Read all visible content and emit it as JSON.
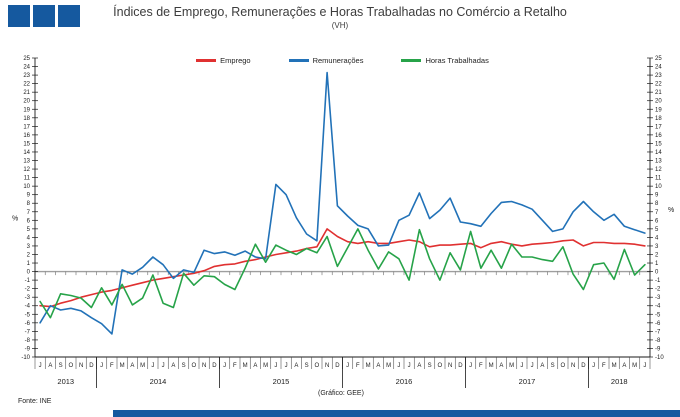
{
  "header": {
    "title": "Índices de Emprego, Remunerações e Horas Trabalhadas no Comércio a Retalho",
    "subtitle": "(VH)"
  },
  "footer": {
    "source": "Fonte: INE",
    "credit": "(Gráfico: GEE)"
  },
  "colors": {
    "brand_blue": "#15599f",
    "axis_black": "#1a1a1a",
    "zero_line_gray": "#9e9e9e",
    "emprego_red": "#e03131",
    "remuneracoes_blue": "#2272b8",
    "horas_green": "#27a349"
  },
  "chart_data": {
    "type": "line",
    "ylabel_left": "%",
    "ylabel_right": "%",
    "ylim": [
      -10,
      25
    ],
    "ytick_step": 1,
    "grid": false,
    "legend_position": "top-center",
    "x_month_labels": [
      "J",
      "A",
      "S",
      "O",
      "N",
      "D",
      "J",
      "F",
      "M",
      "A",
      "M",
      "J",
      "J",
      "A",
      "S",
      "O",
      "N",
      "D",
      "J",
      "F",
      "M",
      "A",
      "M",
      "J",
      "J",
      "A",
      "S",
      "O",
      "N",
      "D",
      "J",
      "F",
      "M",
      "A",
      "M",
      "J",
      "J",
      "A",
      "S",
      "O",
      "N",
      "D",
      "J",
      "F",
      "M",
      "A",
      "M",
      "J",
      "J",
      "A",
      "S",
      "O",
      "N",
      "D",
      "J",
      "F",
      "M",
      "A",
      "M",
      "J"
    ],
    "year_groups": [
      {
        "label": "2013",
        "months": 6
      },
      {
        "label": "2014",
        "months": 12
      },
      {
        "label": "2015",
        "months": 12
      },
      {
        "label": "2016",
        "months": 12
      },
      {
        "label": "2017",
        "months": 12
      },
      {
        "label": "2018",
        "months": 6
      }
    ],
    "series": [
      {
        "name": "Emprego",
        "color": "#e03131",
        "values": [
          -4.0,
          -4.1,
          -3.7,
          -3.4,
          -3.0,
          -2.7,
          -2.4,
          -2.2,
          -1.9,
          -1.6,
          -1.3,
          -1.0,
          -0.8,
          -0.6,
          -0.4,
          -0.2,
          0.1,
          0.6,
          0.8,
          0.9,
          1.2,
          1.4,
          1.7,
          2.0,
          2.2,
          2.4,
          2.7,
          2.9,
          5.0,
          4.1,
          3.5,
          3.3,
          3.5,
          3.3,
          3.3,
          3.5,
          3.7,
          3.5,
          2.9,
          3.1,
          3.1,
          3.2,
          3.3,
          2.8,
          3.3,
          3.5,
          3.2,
          3.0,
          3.2,
          3.3,
          3.4,
          3.6,
          3.7,
          3.0,
          3.4,
          3.4,
          3.3,
          3.3,
          3.2,
          3.0
        ]
      },
      {
        "name": "Remunerações",
        "color": "#2272b8",
        "values": [
          -6.0,
          -4.0,
          -4.5,
          -4.3,
          -4.6,
          -5.4,
          -6.1,
          -7.3,
          0.2,
          -0.3,
          0.5,
          1.7,
          0.8,
          -0.8,
          0.2,
          -0.1,
          2.5,
          2.1,
          2.3,
          1.9,
          2.4,
          1.7,
          1.5,
          10.2,
          9.0,
          6.3,
          4.4,
          3.6,
          23.3,
          7.7,
          6.5,
          5.4,
          5.0,
          3.0,
          3.1,
          6.0,
          6.6,
          9.2,
          6.2,
          7.2,
          8.6,
          5.8,
          5.6,
          5.3,
          6.8,
          8.1,
          8.2,
          7.8,
          7.3,
          6.0,
          4.7,
          5.0,
          7.0,
          8.2,
          7.0,
          6.0,
          6.7,
          5.3,
          4.9,
          4.5
        ]
      },
      {
        "name": "Horas Trabalhadas",
        "color": "#27a349",
        "values": [
          -3.5,
          -5.4,
          -2.6,
          -2.8,
          -3.1,
          -4.2,
          -1.9,
          -3.9,
          -1.5,
          -3.9,
          -3.1,
          -0.4,
          -3.7,
          -4.2,
          -0.2,
          -1.6,
          -0.5,
          -0.6,
          -1.5,
          -2.1,
          0.4,
          3.2,
          1.1,
          3.1,
          2.5,
          2.0,
          2.7,
          2.2,
          4.1,
          0.6,
          2.8,
          5.0,
          2.5,
          0.3,
          2.3,
          1.5,
          -1.0,
          4.9,
          1.5,
          -1.0,
          2.2,
          0.2,
          4.7,
          0.4,
          2.5,
          0.4,
          3.2,
          1.7,
          1.7,
          1.4,
          1.2,
          2.9,
          -0.3,
          -2.1,
          0.8,
          1.0,
          -0.9,
          2.6,
          -0.4,
          0.8
        ]
      }
    ]
  }
}
